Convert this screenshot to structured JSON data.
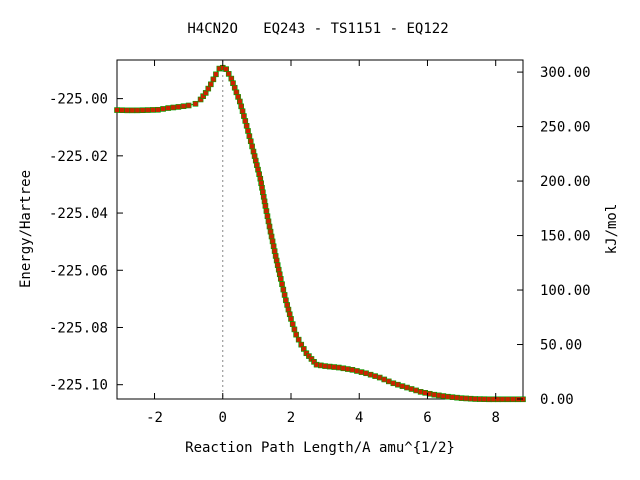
{
  "chart_data": {
    "type": "line",
    "title": "H4CN2O   EQ243 - TS1151 - EQ122",
    "xlabel": "Reaction Path Length/A amu^{1/2}",
    "ylabel": "Energy/Hartree",
    "y2label": "kJ/mol",
    "xlim": [
      -3.1,
      8.8
    ],
    "ylim": [
      -225.105,
      -224.9865
    ],
    "y2lim": [
      0,
      311.1
    ],
    "xticks": [
      -2,
      0,
      2,
      4,
      6,
      8
    ],
    "xtick_labels": [
      "-2",
      "0",
      "2",
      "4",
      "6",
      "8"
    ],
    "yticks": [
      -225.0,
      -225.02,
      -225.04,
      -225.06,
      -225.08,
      -225.1
    ],
    "ytick_labels": [
      "-225.00",
      "-225.02",
      "-225.04",
      "-225.06",
      "-225.08",
      "-225.10"
    ],
    "y2ticks": [
      0,
      50,
      100,
      150,
      200,
      250,
      300
    ],
    "y2tick_labels": [
      "0.00",
      "50.00",
      "100.00",
      "150.00",
      "200.00",
      "250.00",
      "300.00"
    ],
    "ts_marker_x": 0.0,
    "grid": false,
    "legend": "none",
    "colors": {
      "line": "#00a000",
      "marker": "#cc2200",
      "ts_line": "#888888",
      "axis": "#000000"
    },
    "series": [
      {
        "points": [
          [
            -3.1,
            -225.004
          ],
          [
            -2.8,
            -225.0041
          ],
          [
            -2.5,
            -225.0041
          ],
          [
            -2.2,
            -225.004
          ],
          [
            -1.9,
            -225.0039
          ],
          [
            -1.6,
            -225.0033
          ],
          [
            -1.3,
            -225.0029
          ],
          [
            -1.0,
            -225.0024
          ],
          [
            -0.8,
            -225.0018
          ],
          [
            -0.65,
            -225.0003
          ],
          [
            -0.5,
            -224.998
          ],
          [
            -0.35,
            -224.995
          ],
          [
            -0.2,
            -224.9915
          ],
          [
            -0.1,
            -224.9895
          ],
          [
            0.0,
            -224.9892
          ],
          [
            0.1,
            -224.9897
          ],
          [
            0.25,
            -224.993
          ],
          [
            0.5,
            -225.001
          ],
          [
            0.7,
            -225.0095
          ],
          [
            0.9,
            -225.0185
          ],
          [
            1.1,
            -225.028
          ],
          [
            1.25,
            -225.0375
          ],
          [
            1.4,
            -225.0465
          ],
          [
            1.55,
            -225.055
          ],
          [
            1.7,
            -225.063
          ],
          [
            1.85,
            -225.0705
          ],
          [
            2.0,
            -225.077
          ],
          [
            2.15,
            -225.0825
          ],
          [
            2.3,
            -225.086
          ],
          [
            2.45,
            -225.089
          ],
          [
            2.6,
            -225.091
          ],
          [
            2.75,
            -225.093
          ],
          [
            3.0,
            -225.0935
          ],
          [
            3.4,
            -225.094
          ],
          [
            3.8,
            -225.0948
          ],
          [
            4.2,
            -225.096
          ],
          [
            4.6,
            -225.0975
          ],
          [
            5.0,
            -225.0995
          ],
          [
            5.4,
            -225.101
          ],
          [
            5.8,
            -225.1025
          ],
          [
            6.2,
            -225.1035
          ],
          [
            6.6,
            -225.1042
          ],
          [
            7.0,
            -225.1047
          ],
          [
            7.4,
            -225.105
          ],
          [
            7.8,
            -225.1051
          ],
          [
            8.2,
            -225.1051
          ],
          [
            8.8,
            -225.1051
          ]
        ]
      }
    ]
  }
}
